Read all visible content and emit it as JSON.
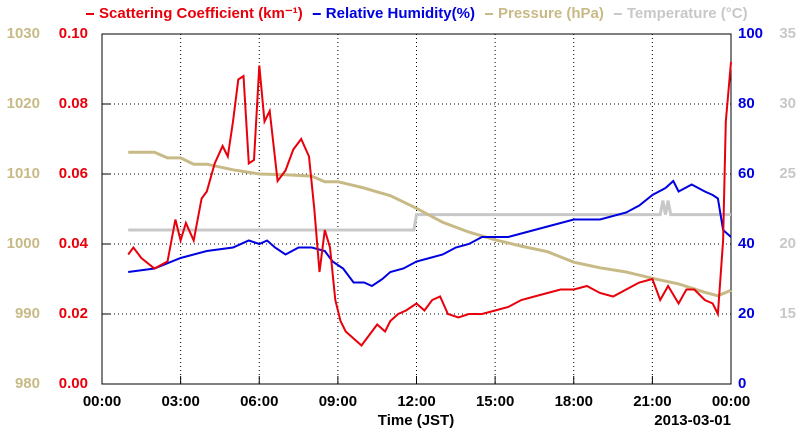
{
  "chart_data": {
    "type": "line",
    "x_label": "Time (JST)",
    "annotation": "2013-03-01",
    "xlim": [
      0,
      24
    ],
    "xticks": [
      {
        "value": 0,
        "label": "00:00"
      },
      {
        "value": 3,
        "label": "03:00"
      },
      {
        "value": 6,
        "label": "06:00"
      },
      {
        "value": 9,
        "label": "09:00"
      },
      {
        "value": 12,
        "label": "12:00"
      },
      {
        "value": 15,
        "label": "15:00"
      },
      {
        "value": 18,
        "label": "18:00"
      },
      {
        "value": 21,
        "label": "21:00"
      },
      {
        "value": 24,
        "label": "00:00"
      }
    ],
    "ylim": [
      0,
      0.1
    ],
    "yticks": [
      {
        "value": 0,
        "label": "0.00"
      },
      {
        "value": 0.02,
        "label": "0.02"
      },
      {
        "value": 0.04,
        "label": "0.04"
      },
      {
        "value": 0.06,
        "label": "0.06"
      },
      {
        "value": 0.08,
        "label": "0.08"
      },
      {
        "value": 0.1,
        "label": "0.10"
      }
    ],
    "y2lim": [
      0,
      100
    ],
    "y2ticks": [
      0,
      20,
      40,
      60,
      80,
      100
    ],
    "y3lim": [
      980,
      1030
    ],
    "y3ticks": [
      980,
      990,
      1000,
      1010,
      1020,
      1030
    ],
    "y4lim": [
      10,
      35
    ],
    "y4ticks": [
      15,
      20,
      25,
      30,
      35
    ],
    "grid": true,
    "series": [
      {
        "name": "Scattering Coefficient (km⁻¹)",
        "color": "#e8000b",
        "axis": "y",
        "x": [
          1.0,
          1.2,
          1.5,
          2.0,
          2.5,
          2.8,
          3.0,
          3.2,
          3.5,
          3.8,
          4.0,
          4.3,
          4.6,
          4.8,
          5.0,
          5.2,
          5.4,
          5.6,
          5.8,
          6.0,
          6.2,
          6.4,
          6.7,
          7.0,
          7.3,
          7.6,
          7.9,
          8.1,
          8.3,
          8.5,
          8.7,
          8.9,
          9.1,
          9.3,
          9.6,
          9.9,
          10.2,
          10.5,
          10.8,
          11.0,
          11.3,
          11.6,
          12.0,
          12.3,
          12.6,
          12.9,
          13.2,
          13.6,
          14.0,
          14.5,
          15.0,
          15.5,
          16.0,
          16.5,
          17.0,
          17.5,
          18.0,
          18.5,
          19.0,
          19.5,
          20.0,
          20.5,
          21.0,
          21.3,
          21.6,
          22.0,
          22.3,
          22.6,
          23.0,
          23.3,
          23.5,
          23.7,
          23.8,
          24.0
        ],
        "values": [
          0.037,
          0.039,
          0.036,
          0.033,
          0.035,
          0.047,
          0.041,
          0.046,
          0.041,
          0.053,
          0.055,
          0.063,
          0.068,
          0.065,
          0.075,
          0.087,
          0.088,
          0.063,
          0.064,
          0.091,
          0.075,
          0.078,
          0.058,
          0.061,
          0.067,
          0.07,
          0.065,
          0.05,
          0.032,
          0.044,
          0.039,
          0.024,
          0.018,
          0.015,
          0.013,
          0.011,
          0.014,
          0.017,
          0.015,
          0.018,
          0.02,
          0.021,
          0.023,
          0.021,
          0.024,
          0.025,
          0.02,
          0.019,
          0.02,
          0.02,
          0.021,
          0.022,
          0.024,
          0.025,
          0.026,
          0.027,
          0.027,
          0.028,
          0.026,
          0.025,
          0.027,
          0.029,
          0.03,
          0.024,
          0.028,
          0.023,
          0.027,
          0.027,
          0.024,
          0.023,
          0.02,
          0.041,
          0.075,
          0.092
        ]
      },
      {
        "name": "Relative Humidity(%)",
        "color": "#0000e0",
        "axis": "y2",
        "x": [
          1.0,
          2.0,
          3.0,
          4.0,
          5.0,
          5.6,
          6.0,
          6.3,
          6.6,
          7.0,
          7.5,
          8.0,
          8.5,
          8.8,
          9.2,
          9.6,
          10.0,
          10.3,
          10.7,
          11.0,
          11.5,
          12.0,
          12.5,
          13.0,
          13.5,
          14.0,
          14.5,
          15.0,
          15.5,
          16.0,
          17.0,
          18.0,
          19.0,
          20.0,
          20.5,
          21.0,
          21.5,
          21.8,
          22.0,
          22.5,
          23.0,
          23.3,
          23.5,
          23.7,
          24.0
        ],
        "values": [
          32,
          33,
          36,
          38,
          39,
          41,
          40,
          41,
          39,
          37,
          39,
          39,
          38,
          35,
          33,
          29,
          29,
          28,
          30,
          32,
          33,
          35,
          36,
          37,
          39,
          40,
          42,
          42,
          42,
          43,
          45,
          47,
          47,
          49,
          51,
          54,
          56,
          58,
          55,
          57,
          55,
          54,
          53,
          44,
          42
        ]
      },
      {
        "name": "Pressure (hPa)",
        "color": "#c8ba86",
        "axis": "y3",
        "x": [
          1.0,
          2.0,
          2.5,
          3.0,
          3.5,
          4.0,
          5.0,
          6.0,
          7.0,
          8.0,
          8.5,
          9.0,
          10.0,
          11.0,
          12.0,
          13.0,
          14.0,
          15.0,
          16.0,
          17.0,
          18.0,
          19.0,
          20.0,
          21.0,
          22.0,
          23.0,
          23.5,
          24.0
        ],
        "values": [
          1013.1,
          1013.1,
          1012.3,
          1012.3,
          1011.4,
          1011.4,
          1010.6,
          1010,
          1009.9,
          1009.7,
          1008.9,
          1008.9,
          1008,
          1006.9,
          1005.1,
          1003.1,
          1001.7,
          1000.6,
          999.7,
          998.9,
          997.4,
          996.6,
          996,
          995.1,
          994.3,
          993.1,
          992.6,
          993.4
        ]
      },
      {
        "name": "Temperature (°C)",
        "color": "#c8c8c8",
        "axis": "y4",
        "x": [
          1.0,
          11.9,
          12.0,
          21.3,
          21.4,
          21.5,
          21.6,
          21.7,
          24.0
        ],
        "values": [
          21,
          21,
          22.1,
          22.1,
          23.1,
          22.1,
          23.1,
          22.1,
          22.1
        ]
      }
    ]
  }
}
